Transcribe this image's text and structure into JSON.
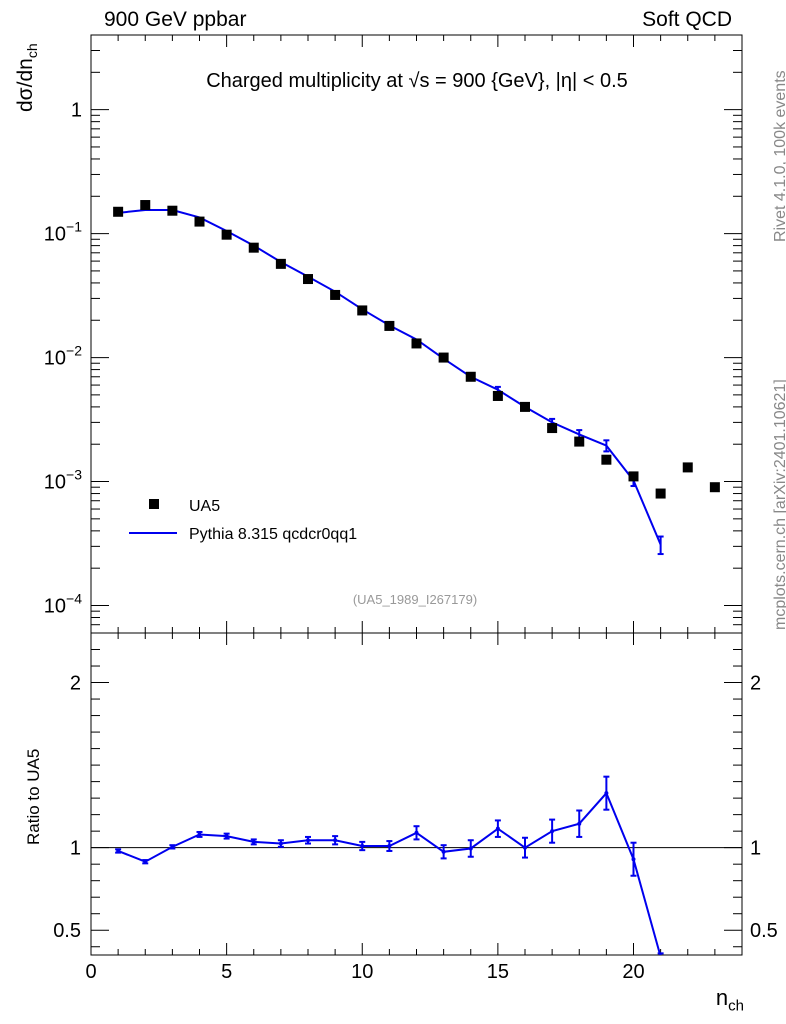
{
  "header": {
    "left": "900 GeV ppbar",
    "right": "Soft QCD"
  },
  "side": {
    "rivet": "Rivet 4.1.0,  100k events",
    "mcplots": "mcplots.cern.ch [arXiv:2401.10621]"
  },
  "chart_data": [
    {
      "type": "scatter",
      "title": "Charged multiplicity at √s = 900 {GeV}, |η| < 0.5",
      "ylabel": "dσ/dn",
      "ylabel_sub": "ch",
      "ylim": [
        6e-05,
        4
      ],
      "ylog": true,
      "xlim": [
        0,
        24
      ],
      "yticks": [
        {
          "v": 1,
          "base": "1",
          "exp": ""
        },
        {
          "v": 0.1,
          "base": "10",
          "exp": "−1"
        },
        {
          "v": 0.01,
          "base": "10",
          "exp": "−2"
        },
        {
          "v": 0.001,
          "base": "10",
          "exp": "−3"
        },
        {
          "v": 0.0001,
          "base": "10",
          "exp": "−4"
        }
      ],
      "annotation": "(UA5_1989_I267179)",
      "legend_position": "bottom-left",
      "series": [
        {
          "name": "UA5",
          "kind": "points",
          "color": "#000000",
          "x": [
            1,
            2,
            3,
            4,
            5,
            6,
            7,
            8,
            9,
            10,
            11,
            12,
            13,
            14,
            15,
            16,
            17,
            18,
            19,
            20,
            21,
            22,
            23
          ],
          "y": [
            0.15,
            0.17,
            0.153,
            0.125,
            0.098,
            0.077,
            0.057,
            0.043,
            0.032,
            0.024,
            0.018,
            0.013,
            0.01,
            0.007,
            0.0049,
            0.004,
            0.0027,
            0.0021,
            0.0015,
            0.0011,
            0.0008,
            0.0013,
            0.0009
          ]
        },
        {
          "name": "Pythia 8.315 qcdcr0qq1",
          "kind": "line",
          "color": "#0000ee",
          "x": [
            1,
            2,
            3,
            4,
            5,
            6,
            7,
            8,
            9,
            10,
            11,
            12,
            13,
            14,
            15,
            16,
            17,
            18,
            19,
            20,
            21
          ],
          "y": [
            0.147,
            0.155,
            0.155,
            0.135,
            0.105,
            0.08,
            0.059,
            0.045,
            0.034,
            0.0245,
            0.0182,
            0.014,
            0.0098,
            0.007,
            0.0055,
            0.004,
            0.003,
            0.0024,
            0.00195,
            0.00102,
            0.00031
          ],
          "err": [
            0,
            0,
            0,
            0,
            0,
            0,
            0,
            0,
            0,
            0,
            0,
            0,
            0,
            0,
            0.0003,
            0.0002,
            0.0002,
            0.0002,
            0.0002,
            0.0001,
            5e-05
          ]
        }
      ]
    },
    {
      "type": "line",
      "ylabel": "Ratio to UA5",
      "xlabel": "n",
      "xlabel_sub": "ch",
      "xlim": [
        0,
        24
      ],
      "ylim": [
        0.35,
        2.3
      ],
      "yticks": [
        0.5,
        1,
        2
      ],
      "xticks": [
        0,
        5,
        10,
        15,
        20
      ],
      "reference": 1,
      "series": [
        {
          "name": "Pythia 8.315 qcdcr0qq1",
          "color": "#0000ee",
          "x": [
            1,
            2,
            3,
            4,
            5,
            6,
            7,
            8,
            9,
            10,
            11,
            12,
            13,
            14,
            15,
            16,
            17,
            18,
            19,
            20,
            21
          ],
          "y": [
            0.98,
            0.915,
            1.005,
            1.08,
            1.07,
            1.035,
            1.025,
            1.045,
            1.045,
            1.01,
            1.01,
            1.09,
            0.975,
            0.995,
            1.115,
            1.0,
            1.1,
            1.145,
            1.33,
            0.93,
            0.34
          ],
          "err": [
            0.01,
            0.01,
            0.01,
            0.015,
            0.015,
            0.015,
            0.02,
            0.02,
            0.025,
            0.025,
            0.03,
            0.04,
            0.04,
            0.05,
            0.05,
            0.06,
            0.07,
            0.08,
            0.1,
            0.1,
            0.02
          ]
        }
      ]
    }
  ]
}
